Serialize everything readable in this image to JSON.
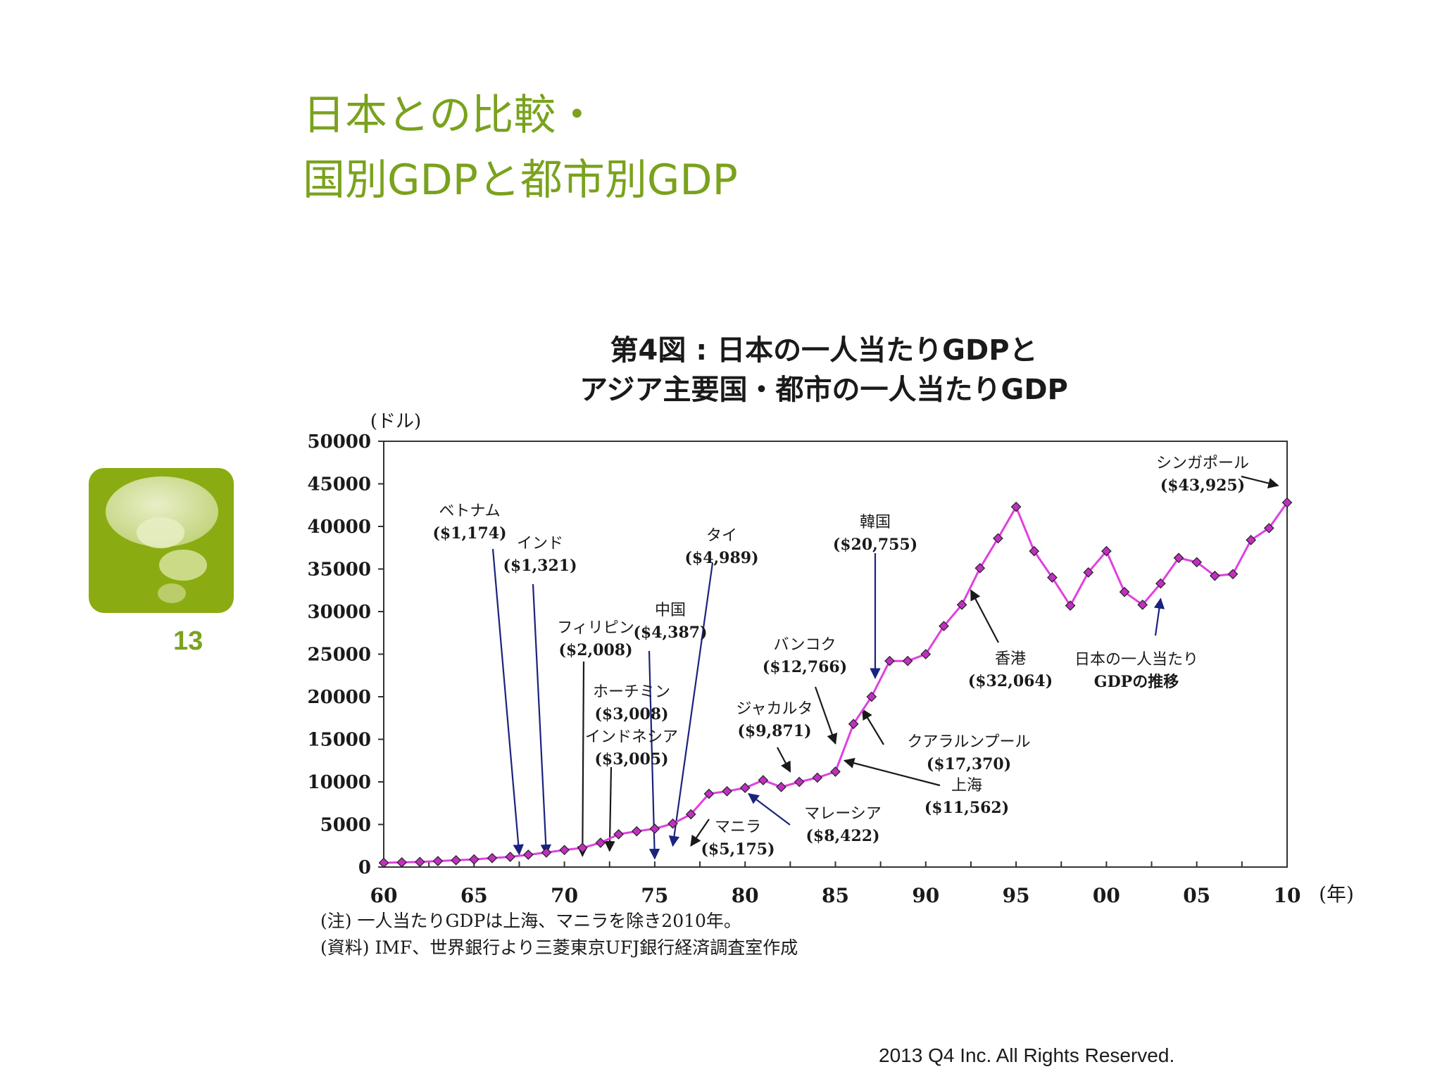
{
  "slide": {
    "title_line1": "日本との比較・",
    "title_line2": "国別GDPと都市別GDP",
    "page_number": "13",
    "copyright": "2013 Q4 Inc. All Rights Reserved.",
    "accent_color": "#7aa21d",
    "icon": "speech-bubble-icon"
  },
  "chart_data": {
    "type": "line",
    "title_line1": "第4図 : 日本の一人当たりGDPと",
    "title_line2": "アジア主要国・都市の一人当たりGDP",
    "ylabel": "(ドル)",
    "xlabel": "(年)",
    "ylim": [
      0,
      50000
    ],
    "yticks": [
      "0",
      "5000",
      "10000",
      "15000",
      "20000",
      "25000",
      "30000",
      "35000",
      "40000",
      "45000",
      "50000"
    ],
    "xlim": [
      1960,
      2010
    ],
    "xtick_labels": [
      {
        "year": 1960,
        "label": "60"
      },
      {
        "year": 1965,
        "label": "65"
      },
      {
        "year": 1970,
        "label": "70"
      },
      {
        "year": 1975,
        "label": "75"
      },
      {
        "year": 1980,
        "label": "80"
      },
      {
        "year": 1985,
        "label": "85"
      },
      {
        "year": 1990,
        "label": "90"
      },
      {
        "year": 1995,
        "label": "95"
      },
      {
        "year": 2000,
        "label": "00"
      },
      {
        "year": 2005,
        "label": "05"
      },
      {
        "year": 2010,
        "label": "10"
      }
    ],
    "line_color": "#e040e0",
    "marker_color": "#c030c0",
    "arrow_color": "#1a237e",
    "series": [
      {
        "x": [
          1960,
          1961,
          1962,
          1963,
          1964,
          1965,
          1966,
          1967,
          1968,
          1969,
          1970,
          1971,
          1972,
          1973,
          1974,
          1975,
          1976,
          1977,
          1978,
          1979,
          1980,
          1981,
          1982,
          1983,
          1984,
          1985,
          1986,
          1987,
          1988,
          1989,
          1990,
          1991,
          1992,
          1993,
          1994,
          1995,
          1996,
          1997,
          1998,
          1999,
          2000,
          2001,
          2002,
          2003,
          2004,
          2005,
          2006,
          2007,
          2008,
          2009,
          2010
        ],
        "y": [
          500,
          550,
          600,
          700,
          800,
          900,
          1050,
          1200,
          1450,
          1700,
          2000,
          2250,
          2850,
          3850,
          4200,
          4500,
          5100,
          6200,
          8600,
          8900,
          9300,
          10200,
          9400,
          10000,
          10500,
          11200,
          16800,
          20000,
          24200,
          24200,
          25000,
          28300,
          30800,
          35100,
          38600,
          42300,
          37100,
          34000,
          30700,
          34600,
          37100,
          32300,
          30800,
          33300,
          36300,
          35800,
          34200,
          34400,
          38400,
          39800,
          42800
        ]
      }
    ],
    "annotations": [
      {
        "label": "ベトナム",
        "value": "($1,174)"
      },
      {
        "label": "インド",
        "value": "($1,321)"
      },
      {
        "label": "フィリピン",
        "value": "($2,008)"
      },
      {
        "label": "中国",
        "value": "($4,387)"
      },
      {
        "label": "タイ",
        "value": "($4,989)"
      },
      {
        "label": "ホーチミン",
        "value": "($3,008)"
      },
      {
        "label": "インドネシア",
        "value": "($3,005)"
      },
      {
        "label": "マニラ",
        "value": "($5,175)"
      },
      {
        "label": "マレーシア",
        "value": "($8,422)"
      },
      {
        "label": "ジャカルタ",
        "value": "($9,871)"
      },
      {
        "label": "バンコク",
        "value": "($12,766)"
      },
      {
        "label": "韓国",
        "value": "($20,755)"
      },
      {
        "label": "クアラルンプール",
        "value": "($17,370)"
      },
      {
        "label": "上海",
        "value": "($11,562)"
      },
      {
        "label": "香港",
        "value": "($32,064)"
      },
      {
        "label": "日本の一人当たり",
        "value": "GDPの推移"
      },
      {
        "label": "シンガポール",
        "value": "($43,925)"
      }
    ],
    "notes": [
      "(注) 一人当たりGDPは上海、マニラを除き2010年。",
      "(資料) IMF、世界銀行より三菱東京UFJ銀行経済調査室作成"
    ]
  }
}
